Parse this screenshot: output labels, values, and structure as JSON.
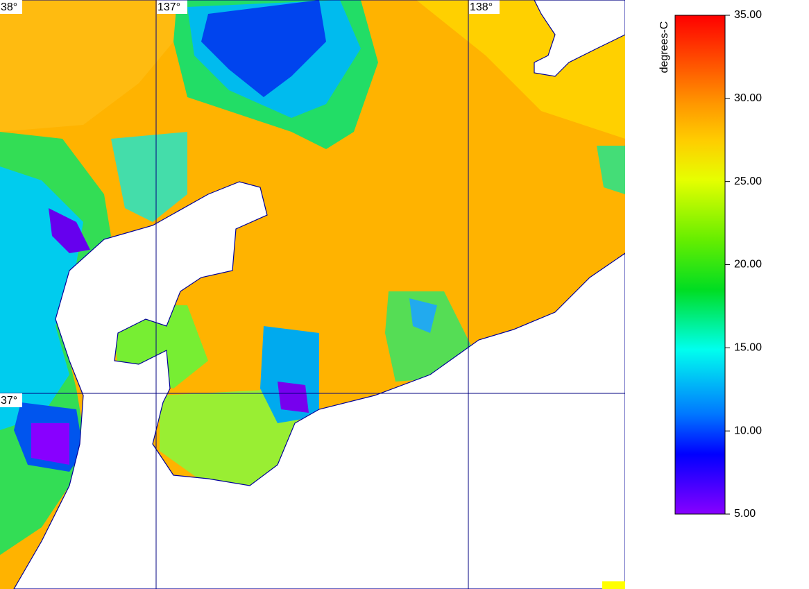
{
  "map": {
    "lon_lines": [
      {
        "value": 137,
        "label": "137°"
      },
      {
        "value": 138,
        "label": "138°"
      }
    ],
    "lat_lines": [
      {
        "value": 38,
        "label": "38°"
      },
      {
        "value": 37,
        "label": "37°"
      }
    ]
  },
  "colorbar": {
    "title": "degrees-C",
    "lim": [
      5,
      35
    ],
    "ticks": [
      {
        "value": 35,
        "label": "35.00"
      },
      {
        "value": 30,
        "label": "30.00"
      },
      {
        "value": 25,
        "label": "25.00"
      },
      {
        "value": 20,
        "label": "20.00"
      },
      {
        "value": 15,
        "label": "15.00"
      },
      {
        "value": 10,
        "label": "10.00"
      },
      {
        "value": 5,
        "label": "5.00"
      }
    ]
  }
}
